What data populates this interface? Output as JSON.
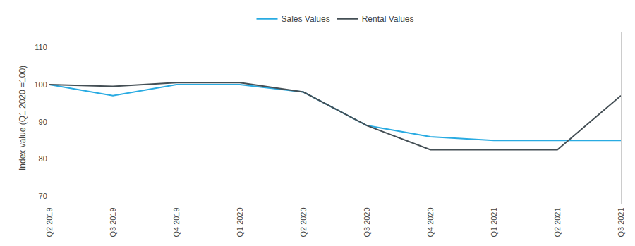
{
  "chart_data": {
    "type": "line",
    "categories": [
      "Q2 2019",
      "Q3 2019",
      "Q4 2019",
      "Q1 2020",
      "Q2 2020",
      "Q3 2020",
      "Q4 2020",
      "Q1 2021",
      "Q2 2021",
      "Q3 2021"
    ],
    "series": [
      {
        "name": "Sales Values",
        "color": "#29ABE2",
        "values": [
          100,
          97,
          100,
          100,
          98,
          89,
          86,
          85,
          85,
          85
        ]
      },
      {
        "name": "Rental Values",
        "color": "#444f55",
        "values": [
          100,
          99.5,
          100.5,
          100.5,
          98,
          89,
          82.5,
          82.5,
          82.5,
          97
        ]
      }
    ],
    "ylabel": "Index value (Q1 2020 =100)",
    "ylim": [
      68,
      114
    ],
    "yticks": [
      70,
      80,
      90,
      100,
      110
    ],
    "grid": false,
    "legend": "top"
  }
}
